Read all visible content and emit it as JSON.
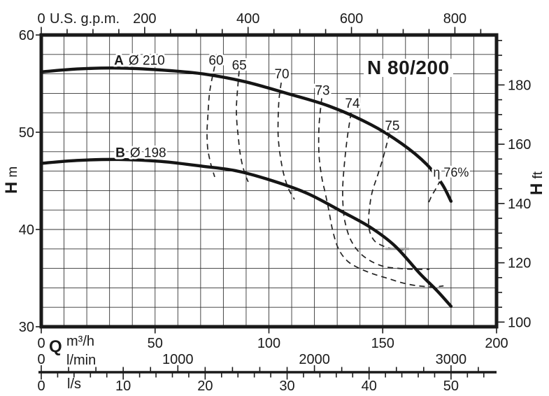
{
  "title": "N 80/200",
  "colors": {
    "ink": "#1a1a1a",
    "grid": "#333333",
    "curve": "#151515",
    "dash": "#222222",
    "duty": "#999999",
    "background": "#ffffff"
  },
  "chart_data": {
    "type": "line",
    "title": "N 80/200",
    "description": "Pump performance curves: head H versus flow Q with iso-efficiency contours",
    "axes": {
      "x_m3h": {
        "symbol": "Q",
        "unit": "m³/h",
        "min": 0,
        "max": 200,
        "labeled_ticks": [
          0,
          50,
          100,
          150,
          200
        ],
        "grid_step": 10
      },
      "x_usgpm": {
        "unit": "U.S. g.p.m.",
        "labeled_ticks": [
          0,
          200,
          400,
          600,
          800
        ],
        "tick_step": 50,
        "tick_max": 850,
        "m3h_per_unit": 0.227124
      },
      "x_lmin": {
        "unit": "l/min",
        "labeled_ticks": [
          0,
          1000,
          2000,
          3000
        ],
        "tick_step": 200,
        "tick_max": 3200,
        "m3h_per_unit": 0.06
      },
      "x_ls": {
        "unit": "l/s",
        "labeled_ticks": [
          0,
          10,
          20,
          30,
          40,
          50
        ],
        "tick_step": 2,
        "tick_max": 54,
        "m3h_per_unit": 3.6
      },
      "y_m": {
        "symbol": "H",
        "unit": "m",
        "min": 30,
        "max": 60,
        "labeled_ticks": [
          60,
          50,
          40,
          30
        ],
        "grid_step": 2
      },
      "y_ft": {
        "symbol": "H",
        "unit": "ft",
        "labeled_ticks": [
          180,
          160,
          140,
          120,
          100
        ],
        "tick_step": 5,
        "tick_min": 100,
        "tick_max": 195,
        "m_per_unit": 0.3048
      }
    },
    "pump_curves": [
      {
        "id": "A",
        "label_bold": "A",
        "label_rest": "Ø 210",
        "label_anchor_qh": [
          32.0,
          57.4
        ],
        "points_q_h": [
          [
            0,
            56.2
          ],
          [
            15.7,
            56.5
          ],
          [
            34.1,
            56.6
          ],
          [
            52.5,
            56.4
          ],
          [
            71.0,
            56.0
          ],
          [
            89.4,
            55.2
          ],
          [
            107.8,
            54.0
          ],
          [
            126.3,
            52.7
          ],
          [
            144.7,
            50.8
          ],
          [
            158.5,
            48.8
          ],
          [
            169.3,
            46.7
          ],
          [
            176.0,
            44.7
          ],
          [
            180.0,
            42.9
          ]
        ]
      },
      {
        "id": "B",
        "label_bold": "B",
        "label_rest": "Ø 198",
        "label_anchor_qh": [
          32.6,
          47.9
        ],
        "points_q_h": [
          [
            0,
            46.8
          ],
          [
            15.7,
            47.1
          ],
          [
            34.1,
            47.2
          ],
          [
            52.5,
            47.0
          ],
          [
            71.0,
            46.5
          ],
          [
            86.3,
            46.0
          ],
          [
            101.7,
            45.0
          ],
          [
            117.0,
            43.7
          ],
          [
            132.4,
            41.8
          ],
          [
            144.7,
            40.2
          ],
          [
            155.4,
            38.3
          ],
          [
            166.2,
            35.5
          ],
          [
            173.9,
            33.7
          ],
          [
            180.0,
            32.1
          ]
        ]
      }
    ],
    "efficiency_curves": [
      {
        "label": "60",
        "label_center_qh": [
          76.8,
          57.4
        ],
        "points_q_h": [
          [
            76.2,
            56.8
          ],
          [
            74.0,
            54.2
          ],
          [
            73.1,
            51.3
          ],
          [
            72.8,
            49.9
          ],
          [
            73.1,
            48.4
          ],
          [
            74.0,
            47.2
          ],
          [
            75.0,
            46.3
          ],
          [
            76.2,
            45.4
          ]
        ]
      },
      {
        "label": "65",
        "label_center_qh": [
          87.0,
          56.9
        ],
        "points_q_h": [
          [
            86.9,
            56.3
          ],
          [
            86.0,
            53.7
          ],
          [
            85.7,
            52.3
          ],
          [
            86.0,
            50.8
          ],
          [
            86.6,
            49.4
          ],
          [
            87.3,
            47.9
          ],
          [
            88.5,
            46.5
          ],
          [
            90.0,
            45.4
          ],
          [
            90.9,
            44.9
          ]
        ]
      },
      {
        "label": "70",
        "label_center_qh": [
          105.7,
          56.0
        ],
        "points_q_h": [
          [
            105.4,
            55.1
          ],
          [
            104.5,
            53.5
          ],
          [
            104.1,
            51.7
          ],
          [
            104.1,
            49.5
          ],
          [
            105.1,
            47.4
          ],
          [
            106.6,
            45.6
          ],
          [
            108.8,
            44.1
          ],
          [
            111.2,
            43.1
          ]
        ]
      },
      {
        "label": "73",
        "label_center_qh": [
          123.5,
          54.3
        ],
        "points_q_h": [
          [
            123.2,
            53.5
          ],
          [
            122.0,
            50.6
          ],
          [
            122.0,
            47.7
          ],
          [
            123.2,
            45.4
          ],
          [
            124.7,
            43.8
          ],
          [
            126.3,
            42.0
          ],
          [
            128.1,
            39.8
          ],
          [
            130.6,
            38.0
          ],
          [
            134.3,
            36.8
          ],
          [
            138.9,
            36.1
          ],
          [
            145.0,
            35.5
          ],
          [
            151.8,
            35.0
          ],
          [
            158.8,
            34.5
          ],
          [
            165.6,
            34.2
          ],
          [
            172.4,
            34.1
          ],
          [
            176.7,
            34.2
          ]
        ]
      },
      {
        "label": "74",
        "label_center_qh": [
          136.7,
          53.0
        ],
        "points_q_h": [
          [
            136.1,
            52.0
          ],
          [
            134.3,
            49.2
          ],
          [
            133.0,
            46.3
          ],
          [
            132.4,
            44.1
          ],
          [
            132.7,
            42.0
          ],
          [
            133.6,
            40.6
          ],
          [
            135.8,
            39.0
          ],
          [
            139.5,
            37.7
          ],
          [
            144.4,
            36.8
          ],
          [
            150.5,
            36.2
          ],
          [
            157.3,
            36.0
          ],
          [
            164.1,
            35.9
          ],
          [
            170.5,
            35.9
          ]
        ]
      },
      {
        "label": "75",
        "label_center_qh": [
          154.2,
          50.7
        ],
        "points_q_h": [
          [
            153.0,
            49.9
          ],
          [
            150.2,
            47.4
          ],
          [
            147.8,
            45.6
          ],
          [
            145.3,
            43.8
          ],
          [
            144.1,
            42.0
          ],
          [
            143.8,
            40.7
          ],
          [
            144.4,
            39.7
          ],
          [
            146.5,
            38.8
          ],
          [
            150.2,
            38.3
          ],
          [
            154.5,
            38.0
          ],
          [
            159.4,
            37.9
          ]
        ]
      },
      {
        "label": "η 76%",
        "label_center_qh": [
          180.0,
          45.9
        ],
        "points_q_h": [
          [
            175.4,
            45.1
          ],
          [
            173.6,
            44.3
          ],
          [
            171.4,
            43.4
          ],
          [
            169.9,
            42.6
          ]
        ]
      }
    ],
    "duty_marker": {
      "points_q_h": [
        [
          151.2,
          38.0
        ],
        [
          161.6,
          38.0
        ]
      ]
    }
  }
}
